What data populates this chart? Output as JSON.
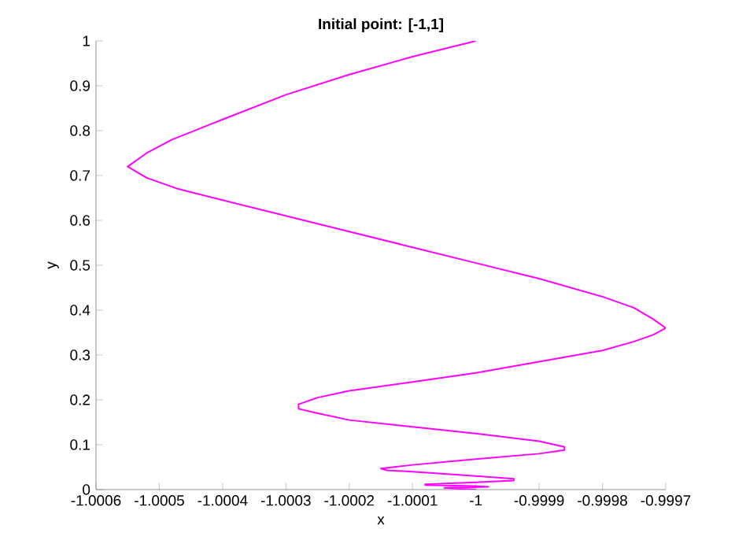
{
  "chart_data": {
    "type": "line",
    "title": "Initial point: [-1,1]",
    "xlabel": "x",
    "ylabel": "y",
    "xlim": [
      -1.0006,
      -0.9997
    ],
    "ylim": [
      0,
      1
    ],
    "xticks": [
      -1.0006,
      -1.0005,
      -1.0004,
      -1.0003,
      -1.0002,
      -1.0001,
      -1,
      -0.9999,
      -0.9998,
      -0.9997
    ],
    "yticks": [
      0,
      0.1,
      0.2,
      0.3,
      0.4,
      0.5,
      0.6,
      0.7,
      0.8,
      0.9,
      1
    ],
    "series": [
      {
        "color": "#ff00ff",
        "x": [
          -1,
          -1.0001,
          -1.0002,
          -1.0003,
          -1.0004,
          -1.00048,
          -1.00052,
          -1.00055,
          -1.00052,
          -1.00047,
          -1.0004,
          -1.0003,
          -1.0002,
          -1.0001,
          -1,
          -0.9999,
          -0.9998,
          -0.99975,
          -0.99972,
          -0.9997,
          -0.99972,
          -0.99975,
          -0.9998,
          -0.9999,
          -1,
          -1.0001,
          -1.0002,
          -1.00025,
          -1.00028,
          -1.00028,
          -1.00025,
          -1.0002,
          -1.0001,
          -1,
          -0.9999,
          -0.99986,
          -0.99986,
          -0.9999,
          -1,
          -1.0001,
          -1.00015,
          -1.00014,
          -1.0001,
          -1,
          -0.99994,
          -0.99994,
          -1,
          -1.00008,
          -1.00008,
          -1,
          -0.99998,
          -1.00005,
          -1.00003,
          -1
        ],
        "values": [
          1,
          0.965,
          0.925,
          0.88,
          0.825,
          0.78,
          0.75,
          0.72,
          0.695,
          0.67,
          0.645,
          0.61,
          0.575,
          0.54,
          0.505,
          0.47,
          0.43,
          0.405,
          0.38,
          0.36,
          0.345,
          0.33,
          0.31,
          0.285,
          0.26,
          0.24,
          0.22,
          0.205,
          0.19,
          0.18,
          0.17,
          0.155,
          0.14,
          0.125,
          0.108,
          0.095,
          0.088,
          0.08,
          0.068,
          0.055,
          0.047,
          0.043,
          0.04,
          0.03,
          0.024,
          0.02,
          0.016,
          0.012,
          0.01,
          0.008,
          0.006,
          0.004,
          0.002,
          0
        ]
      }
    ]
  }
}
